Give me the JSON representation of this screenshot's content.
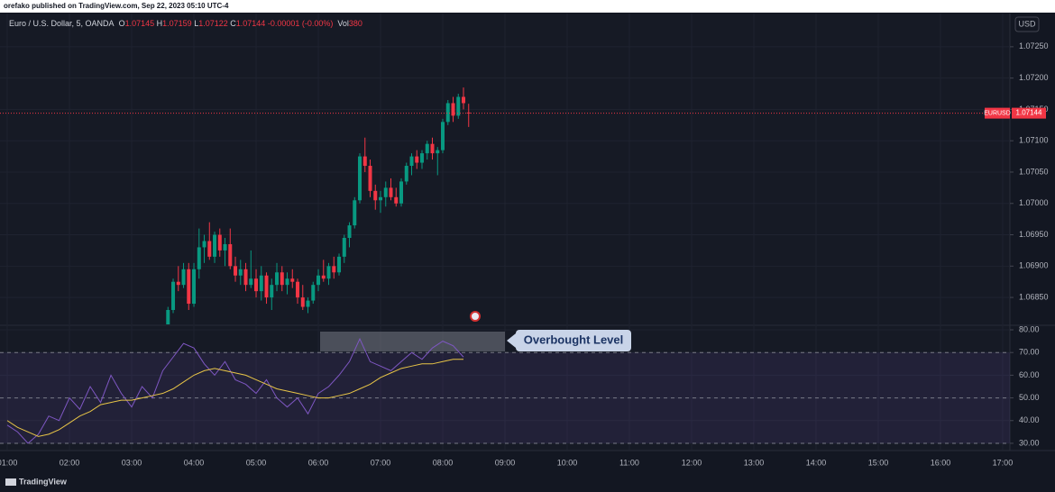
{
  "header": {
    "publisher": "orefako published on TradingView.com, Sep 22, 2023 05:10 UTC-4",
    "footer": "TradingView"
  },
  "chart_data": [
    {
      "type": "candlestick",
      "title": "Euro / U.S. Dollar, 5, OANDA",
      "ohlc": [
        {
          "label": "O",
          "value": "1.07145"
        },
        {
          "label": "H",
          "value": "1.07159"
        },
        {
          "label": "L",
          "value": "1.07122"
        },
        {
          "label": "C",
          "value": "1.07144"
        }
      ],
      "change": "-0.00001 (-0.00%)",
      "volume": {
        "label": "Vol",
        "value": "380"
      },
      "currency": "USD",
      "x": [
        215,
        220,
        225,
        230,
        235,
        240,
        245,
        250,
        255,
        260,
        265,
        270,
        275,
        280,
        285,
        290,
        295,
        300,
        305,
        310,
        315,
        320,
        325,
        330,
        335,
        340,
        345,
        350,
        355,
        360,
        365,
        370,
        375,
        380,
        385,
        390,
        395,
        400,
        405,
        410,
        415,
        420,
        425,
        430,
        435,
        440,
        445,
        450,
        455,
        460,
        465,
        470,
        475,
        480,
        485,
        490,
        495,
        500,
        505
      ],
      "open": [
        1.06805,
        1.0683,
        1.06875,
        1.0687,
        1.06895,
        1.0684,
        1.06895,
        1.0693,
        1.0694,
        1.06915,
        1.0695,
        1.06925,
        1.06935,
        1.069,
        1.06885,
        1.06895,
        1.0687,
        1.0688,
        1.0686,
        1.06885,
        1.0685,
        1.0687,
        1.0689,
        1.0687,
        1.0688,
        1.06875,
        1.0685,
        1.06835,
        1.06845,
        1.0687,
        1.06885,
        1.0688,
        1.069,
        1.0689,
        1.06915,
        1.06945,
        1.06965,
        1.07005,
        1.07075,
        1.0706,
        1.0702,
        1.07005,
        1.0701,
        1.07025,
        1.0701,
        1.07,
        1.07035,
        1.0706,
        1.07075,
        1.07065,
        1.0708,
        1.07095,
        1.0708,
        1.07085,
        1.0713,
        1.0716,
        1.0714,
        1.0717,
        1.07145
      ],
      "high": [
        1.06835,
        1.0688,
        1.069,
        1.06905,
        1.06905,
        1.06905,
        1.0696,
        1.0695,
        1.0697,
        1.06955,
        1.0696,
        1.06945,
        1.0696,
        1.06915,
        1.0691,
        1.06905,
        1.06925,
        1.06895,
        1.069,
        1.0689,
        1.0688,
        1.06905,
        1.069,
        1.0689,
        1.06895,
        1.0688,
        1.0687,
        1.0685,
        1.06875,
        1.06895,
        1.0691,
        1.06905,
        1.06915,
        1.0692,
        1.0695,
        1.0697,
        1.0701,
        1.0708,
        1.07105,
        1.0707,
        1.0703,
        1.0702,
        1.07035,
        1.0704,
        1.07025,
        1.0704,
        1.07065,
        1.0708,
        1.07085,
        1.07085,
        1.071,
        1.07105,
        1.0709,
        1.07135,
        1.07165,
        1.0717,
        1.07175,
        1.07185,
        1.07159
      ],
      "low": [
        1.068,
        1.06825,
        1.0686,
        1.06865,
        1.0683,
        1.06835,
        1.0688,
        1.06905,
        1.0691,
        1.06905,
        1.06915,
        1.069,
        1.06895,
        1.06875,
        1.0687,
        1.0686,
        1.06865,
        1.0685,
        1.06845,
        1.0684,
        1.0683,
        1.0686,
        1.0686,
        1.06855,
        1.06865,
        1.0684,
        1.0683,
        1.06825,
        1.0684,
        1.0686,
        1.06875,
        1.0687,
        1.0688,
        1.06885,
        1.06905,
        1.0693,
        1.0696,
        1.07,
        1.0705,
        1.0701,
        1.0699,
        1.06985,
        1.06995,
        1.07005,
        1.06995,
        1.06995,
        1.0703,
        1.07045,
        1.07055,
        1.07055,
        1.0707,
        1.0707,
        1.07045,
        1.0708,
        1.07125,
        1.0713,
        1.07135,
        1.0715,
        1.07122
      ],
      "close": [
        1.0683,
        1.06875,
        1.0687,
        1.06895,
        1.0684,
        1.06895,
        1.0693,
        1.0694,
        1.06915,
        1.0695,
        1.06925,
        1.06935,
        1.069,
        1.06885,
        1.06895,
        1.0687,
        1.0688,
        1.0686,
        1.06885,
        1.0685,
        1.0687,
        1.0689,
        1.0687,
        1.0688,
        1.06875,
        1.0685,
        1.06835,
        1.06845,
        1.0687,
        1.06885,
        1.0688,
        1.069,
        1.0689,
        1.06915,
        1.06945,
        1.06965,
        1.07005,
        1.07075,
        1.0706,
        1.0702,
        1.07005,
        1.0701,
        1.07025,
        1.0701,
        1.07,
        1.07035,
        1.0706,
        1.07075,
        1.07065,
        1.0708,
        1.07095,
        1.0708,
        1.07085,
        1.0713,
        1.0716,
        1.0714,
        1.0717,
        1.0716,
        1.07144
      ],
      "up_color": "#089981",
      "down_color": "#f23645",
      "xlim": [
        53,
        1027
      ],
      "ylim": [
        1.06807,
        1.07303
      ],
      "yticks": [
        {
          "value": 1.0685,
          "label": "1.06850"
        },
        {
          "value": 1.069,
          "label": "1.06900"
        },
        {
          "value": 1.0695,
          "label": "1.06950"
        },
        {
          "value": 1.07,
          "label": "1.07000"
        },
        {
          "value": 1.0705,
          "label": "1.07050"
        },
        {
          "value": 1.071,
          "label": "1.07100"
        },
        {
          "value": 1.0715,
          "label": "1.07150"
        },
        {
          "value": 1.072,
          "label": "1.07200"
        },
        {
          "value": 1.0725,
          "label": "1.07250"
        }
      ],
      "last_price": {
        "symbol": "EURUSD",
        "value": 1.07144,
        "label": "1.07144"
      },
      "grid": true
    },
    {
      "type": "line",
      "x": [
        60,
        70,
        80,
        90,
        100,
        110,
        120,
        130,
        140,
        150,
        160,
        170,
        180,
        190,
        200,
        210,
        220,
        230,
        240,
        250,
        260,
        270,
        280,
        290,
        300,
        310,
        320,
        330,
        340,
        350,
        360,
        370,
        380,
        390,
        400,
        410,
        420,
        430,
        440,
        450,
        460,
        470,
        480,
        490,
        500
      ],
      "series": [
        {
          "color": "#7e57c2",
          "values": [
            38,
            35,
            30,
            34,
            42,
            40,
            50,
            45,
            55,
            48,
            60,
            52,
            46,
            55,
            50,
            62,
            68,
            74,
            72,
            65,
            60,
            66,
            58,
            56,
            52,
            58,
            50,
            46,
            50,
            43,
            52,
            55,
            60,
            66,
            76,
            66,
            64,
            62,
            66,
            70,
            67,
            72,
            75,
            73,
            68
          ]
        },
        {
          "color": "#e8c547",
          "values": [
            40,
            37,
            35,
            33,
            34,
            36,
            39,
            42,
            44,
            47,
            48,
            49,
            49,
            50,
            51,
            52,
            54,
            57,
            60,
            62,
            63,
            62,
            61,
            60,
            58,
            56,
            54,
            53,
            52,
            51,
            50,
            50,
            51,
            52,
            54,
            56,
            59,
            61,
            63,
            64,
            65,
            65,
            66,
            67,
            67
          ]
        }
      ],
      "band": [
        30,
        70
      ],
      "band_color": "#7e57c2",
      "middle": 50,
      "annotation": "Overbought Level",
      "xlim": [
        53,
        1027
      ],
      "ylim": [
        26.8,
        81.6
      ],
      "yticks": [
        {
          "value": 30,
          "label": "30.00"
        },
        {
          "value": 40,
          "label": "40.00"
        },
        {
          "value": 50,
          "label": "50.00"
        },
        {
          "value": 60,
          "label": "60.00"
        },
        {
          "value": 70,
          "label": "70.00"
        },
        {
          "value": 80,
          "label": "80.00"
        }
      ],
      "xticks": [
        {
          "value": 60,
          "label": "01:00"
        },
        {
          "value": 120,
          "label": "02:00"
        },
        {
          "value": 180,
          "label": "03:00"
        },
        {
          "value": 240,
          "label": "04:00"
        },
        {
          "value": 300,
          "label": "05:00"
        },
        {
          "value": 360,
          "label": "06:00"
        },
        {
          "value": 420,
          "label": "07:00"
        },
        {
          "value": 480,
          "label": "08:00"
        },
        {
          "value": 540,
          "label": "09:00"
        },
        {
          "value": 600,
          "label": "10:00"
        },
        {
          "value": 660,
          "label": "11:00"
        },
        {
          "value": 720,
          "label": "12:00"
        },
        {
          "value": 780,
          "label": "13:00"
        },
        {
          "value": 840,
          "label": "14:00"
        },
        {
          "value": 900,
          "label": "15:00"
        },
        {
          "value": 960,
          "label": "16:00"
        },
        {
          "value": 1020,
          "label": "17:00"
        }
      ],
      "grid": true
    }
  ]
}
